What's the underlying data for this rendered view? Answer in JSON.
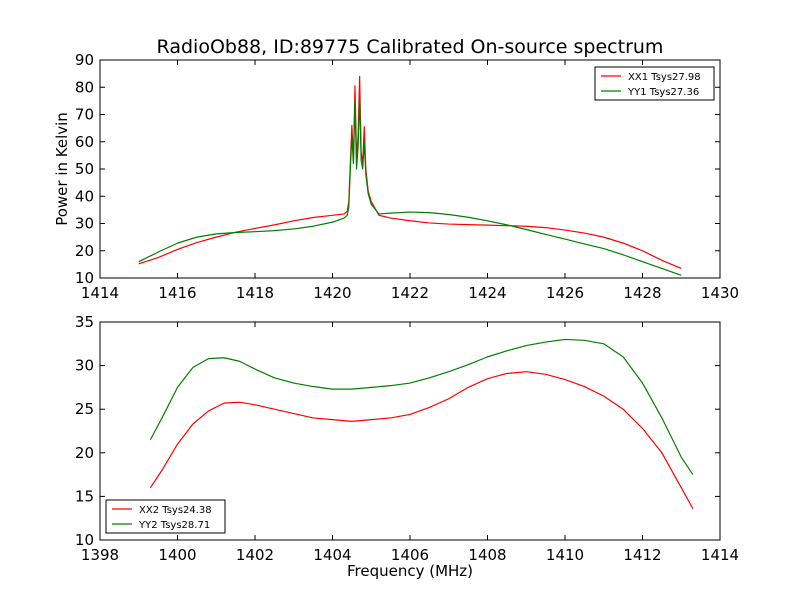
{
  "figure": {
    "title": "RadioOb88, ID:89775 Calibrated On-source spectrum",
    "ylabel": "Power in Kelvin",
    "xlabel": "Frequency (MHz)"
  },
  "chart_data": [
    {
      "type": "line",
      "title": "RadioOb88, ID:89775 Calibrated On-source spectrum",
      "xlabel": "",
      "ylabel": "Power in Kelvin",
      "xlim": [
        1414,
        1430
      ],
      "ylim": [
        10,
        90
      ],
      "xticks": [
        1414,
        1416,
        1418,
        1420,
        1422,
        1424,
        1426,
        1428,
        1430
      ],
      "yticks": [
        10,
        20,
        30,
        40,
        50,
        60,
        70,
        80,
        90
      ],
      "grid": false,
      "legend_position": "top-right",
      "series": [
        {
          "name": "XX1 Tsys27.98",
          "color": "#ff0000",
          "points": [
            [
              1415.0,
              15.2
            ],
            [
              1415.5,
              17.5
            ],
            [
              1416.0,
              20.5
            ],
            [
              1416.5,
              23.0
            ],
            [
              1417.0,
              25.0
            ],
            [
              1417.5,
              26.8
            ],
            [
              1418.0,
              28.2
            ],
            [
              1418.5,
              29.5
            ],
            [
              1419.0,
              31.0
            ],
            [
              1419.5,
              32.2
            ],
            [
              1420.0,
              33.0
            ],
            [
              1420.3,
              33.5
            ],
            [
              1420.38,
              34.5
            ],
            [
              1420.42,
              38.0
            ],
            [
              1420.46,
              52.0
            ],
            [
              1420.5,
              66.0
            ],
            [
              1420.54,
              53.0
            ],
            [
              1420.58,
              80.5
            ],
            [
              1420.62,
              55.0
            ],
            [
              1420.66,
              62.0
            ],
            [
              1420.7,
              84.0
            ],
            [
              1420.74,
              56.0
            ],
            [
              1420.78,
              52.0
            ],
            [
              1420.82,
              65.5
            ],
            [
              1420.86,
              50.0
            ],
            [
              1420.92,
              42.0
            ],
            [
              1421.0,
              38.0
            ],
            [
              1421.2,
              33.0
            ],
            [
              1421.5,
              32.0
            ],
            [
              1422.0,
              31.0
            ],
            [
              1422.5,
              30.2
            ],
            [
              1423.0,
              29.8
            ],
            [
              1423.5,
              29.6
            ],
            [
              1424.0,
              29.4
            ],
            [
              1424.5,
              29.2
            ],
            [
              1425.0,
              29.0
            ],
            [
              1425.5,
              28.5
            ],
            [
              1426.0,
              27.6
            ],
            [
              1426.5,
              26.5
            ],
            [
              1427.0,
              25.0
            ],
            [
              1427.5,
              22.8
            ],
            [
              1428.0,
              20.0
            ],
            [
              1428.5,
              16.5
            ],
            [
              1429.0,
              13.5
            ]
          ]
        },
        {
          "name": "YY1 Tsys27.36",
          "color": "#008000",
          "points": [
            [
              1415.0,
              16.0
            ],
            [
              1415.5,
              19.5
            ],
            [
              1416.0,
              22.8
            ],
            [
              1416.5,
              25.0
            ],
            [
              1417.0,
              26.2
            ],
            [
              1417.5,
              26.7
            ],
            [
              1418.0,
              27.0
            ],
            [
              1418.5,
              27.4
            ],
            [
              1419.0,
              28.0
            ],
            [
              1419.5,
              29.0
            ],
            [
              1420.0,
              30.5
            ],
            [
              1420.3,
              32.0
            ],
            [
              1420.38,
              33.0
            ],
            [
              1420.42,
              36.0
            ],
            [
              1420.46,
              50.0
            ],
            [
              1420.5,
              62.0
            ],
            [
              1420.54,
              52.0
            ],
            [
              1420.58,
              75.0
            ],
            [
              1420.62,
              50.0
            ],
            [
              1420.66,
              58.0
            ],
            [
              1420.7,
              76.0
            ],
            [
              1420.74,
              53.0
            ],
            [
              1420.78,
              50.0
            ],
            [
              1420.82,
              60.0
            ],
            [
              1420.86,
              48.0
            ],
            [
              1420.92,
              41.0
            ],
            [
              1421.0,
              37.0
            ],
            [
              1421.2,
              33.5
            ],
            [
              1421.5,
              33.8
            ],
            [
              1422.0,
              34.2
            ],
            [
              1422.5,
              34.0
            ],
            [
              1423.0,
              33.3
            ],
            [
              1423.5,
              32.3
            ],
            [
              1424.0,
              31.0
            ],
            [
              1424.5,
              29.5
            ],
            [
              1425.0,
              27.8
            ],
            [
              1425.5,
              26.0
            ],
            [
              1426.0,
              24.3
            ],
            [
              1426.5,
              22.5
            ],
            [
              1427.0,
              20.8
            ],
            [
              1427.5,
              18.5
            ],
            [
              1428.0,
              16.0
            ],
            [
              1428.5,
              13.5
            ],
            [
              1429.0,
              11.0
            ]
          ]
        }
      ]
    },
    {
      "type": "line",
      "title": "",
      "xlabel": "Frequency (MHz)",
      "ylabel": "",
      "xlim": [
        1398,
        1414
      ],
      "ylim": [
        10,
        35
      ],
      "xticks": [
        1398,
        1400,
        1402,
        1404,
        1406,
        1408,
        1410,
        1412,
        1414
      ],
      "yticks": [
        10,
        15,
        20,
        25,
        30,
        35
      ],
      "grid": false,
      "legend_position": "bottom-left",
      "series": [
        {
          "name": "XX2 Tsys24.38",
          "color": "#ff0000",
          "points": [
            [
              1399.3,
              16.0
            ],
            [
              1399.6,
              18.0
            ],
            [
              1400.0,
              21.0
            ],
            [
              1400.4,
              23.3
            ],
            [
              1400.8,
              24.8
            ],
            [
              1401.2,
              25.7
            ],
            [
              1401.6,
              25.8
            ],
            [
              1402.0,
              25.5
            ],
            [
              1402.5,
              25.0
            ],
            [
              1403.0,
              24.5
            ],
            [
              1403.5,
              24.0
            ],
            [
              1404.0,
              23.8
            ],
            [
              1404.5,
              23.6
            ],
            [
              1405.0,
              23.8
            ],
            [
              1405.5,
              24.0
            ],
            [
              1406.0,
              24.4
            ],
            [
              1406.5,
              25.2
            ],
            [
              1407.0,
              26.2
            ],
            [
              1407.5,
              27.5
            ],
            [
              1408.0,
              28.5
            ],
            [
              1408.5,
              29.1
            ],
            [
              1409.0,
              29.3
            ],
            [
              1409.5,
              29.0
            ],
            [
              1410.0,
              28.4
            ],
            [
              1410.5,
              27.6
            ],
            [
              1411.0,
              26.5
            ],
            [
              1411.5,
              25.0
            ],
            [
              1412.0,
              22.8
            ],
            [
              1412.5,
              20.0
            ],
            [
              1413.0,
              16.0
            ],
            [
              1413.3,
              13.6
            ]
          ]
        },
        {
          "name": "YY2 Tsys28.71",
          "color": "#008000",
          "points": [
            [
              1399.3,
              21.5
            ],
            [
              1399.6,
              24.0
            ],
            [
              1400.0,
              27.5
            ],
            [
              1400.4,
              29.8
            ],
            [
              1400.8,
              30.8
            ],
            [
              1401.2,
              30.9
            ],
            [
              1401.6,
              30.5
            ],
            [
              1402.0,
              29.6
            ],
            [
              1402.5,
              28.6
            ],
            [
              1403.0,
              28.0
            ],
            [
              1403.5,
              27.6
            ],
            [
              1404.0,
              27.3
            ],
            [
              1404.5,
              27.3
            ],
            [
              1405.0,
              27.5
            ],
            [
              1405.5,
              27.7
            ],
            [
              1406.0,
              28.0
            ],
            [
              1406.5,
              28.6
            ],
            [
              1407.0,
              29.3
            ],
            [
              1407.5,
              30.1
            ],
            [
              1408.0,
              31.0
            ],
            [
              1408.5,
              31.7
            ],
            [
              1409.0,
              32.3
            ],
            [
              1409.5,
              32.7
            ],
            [
              1410.0,
              33.0
            ],
            [
              1410.5,
              32.9
            ],
            [
              1411.0,
              32.5
            ],
            [
              1411.5,
              31.0
            ],
            [
              1412.0,
              28.0
            ],
            [
              1412.5,
              24.0
            ],
            [
              1413.0,
              19.5
            ],
            [
              1413.3,
              17.5
            ]
          ]
        }
      ]
    }
  ]
}
